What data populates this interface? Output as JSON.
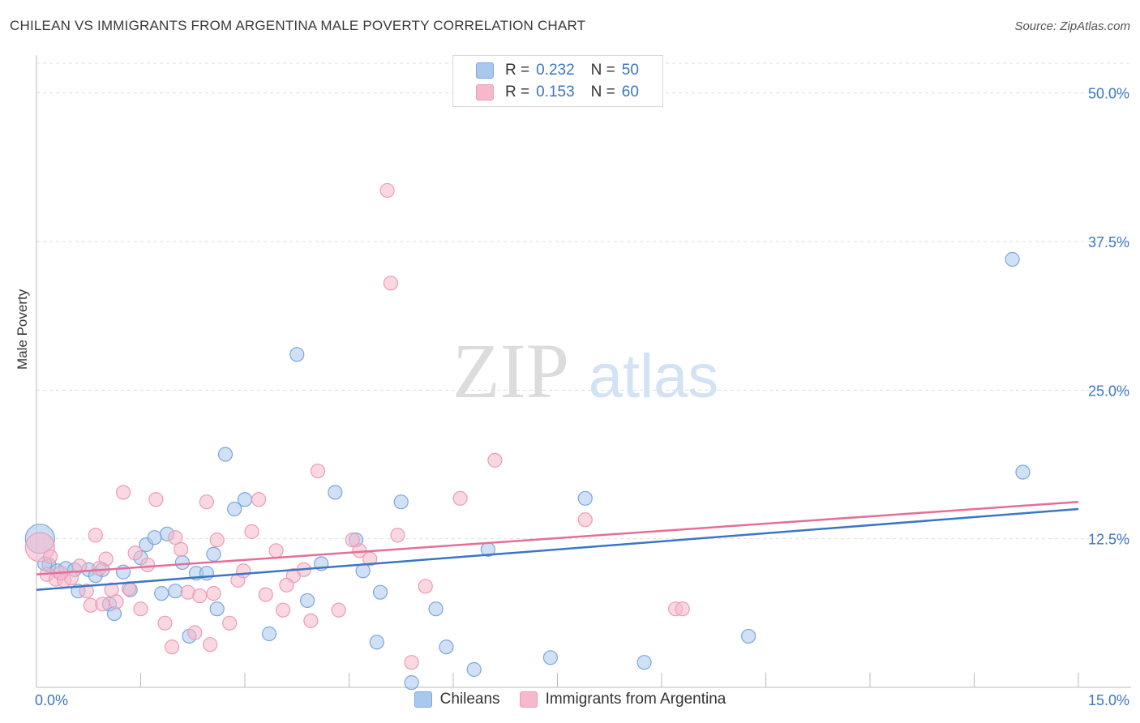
{
  "title": "CHILEAN VS IMMIGRANTS FROM ARGENTINA MALE POVERTY CORRELATION CHART",
  "source": "Source: ZipAtlas.com",
  "watermark": {
    "zip": "ZIP",
    "atlas": "atlas"
  },
  "legend": {
    "rows": [
      {
        "r_label": "R =",
        "r_value": "0.232",
        "n_label": "N =",
        "n_value": "50"
      },
      {
        "r_label": "R =",
        "r_value": "0.153",
        "n_label": "N =",
        "n_value": "60"
      }
    ]
  },
  "bottom_legend": {
    "chileans": "Chileans",
    "argentina": "Immigrants from Argentina"
  },
  "colors": {
    "blue_fill": "#aac8ef",
    "blue_stroke": "#7aa6dc",
    "blue_line": "#3b76c5",
    "pink_fill": "#f6b8cb",
    "pink_stroke": "#ec9bb5",
    "pink_line": "#e56e98",
    "axis_text": "#3b76c5"
  },
  "chart_data": {
    "type": "scatter",
    "title": "CHILEAN VS IMMIGRANTS FROM ARGENTINA MALE POVERTY CORRELATION CHART",
    "xlabel": "",
    "ylabel": "Male Poverty",
    "xlim": [
      0,
      15
    ],
    "ylim": [
      0,
      52.5
    ],
    "x_tick_labels": [
      "0.0%",
      "15.0%"
    ],
    "y_ticks": [
      12.5,
      25.0,
      37.5,
      50.0
    ],
    "y_tick_labels": [
      "12.5%",
      "25.0%",
      "37.5%",
      "50.0%"
    ],
    "series": [
      {
        "name": "Chileans",
        "R": 0.232,
        "N": 50,
        "trend": {
          "x": [
            0,
            15
          ],
          "y": [
            8.2,
            15.0
          ]
        },
        "points": [
          {
            "x": 0.05,
            "y": 12.5,
            "big": true
          },
          {
            "x": 0.18,
            "y": 10.3
          },
          {
            "x": 0.3,
            "y": 9.8
          },
          {
            "x": 0.42,
            "y": 10.0
          },
          {
            "x": 0.55,
            "y": 9.9
          },
          {
            "x": 0.6,
            "y": 8.1
          },
          {
            "x": 0.75,
            "y": 9.9
          },
          {
            "x": 0.85,
            "y": 9.4
          },
          {
            "x": 0.95,
            "y": 9.9
          },
          {
            "x": 1.05,
            "y": 7.0
          },
          {
            "x": 1.12,
            "y": 6.2
          },
          {
            "x": 1.25,
            "y": 9.7
          },
          {
            "x": 1.35,
            "y": 8.2
          },
          {
            "x": 1.5,
            "y": 10.9
          },
          {
            "x": 1.58,
            "y": 12.0
          },
          {
            "x": 1.7,
            "y": 12.6
          },
          {
            "x": 1.8,
            "y": 7.9
          },
          {
            "x": 1.88,
            "y": 12.9
          },
          {
            "x": 2.0,
            "y": 8.1
          },
          {
            "x": 2.1,
            "y": 10.5
          },
          {
            "x": 2.2,
            "y": 4.3
          },
          {
            "x": 2.3,
            "y": 9.6
          },
          {
            "x": 2.45,
            "y": 9.6
          },
          {
            "x": 2.55,
            "y": 11.2
          },
          {
            "x": 2.6,
            "y": 6.6
          },
          {
            "x": 2.72,
            "y": 19.6
          },
          {
            "x": 2.85,
            "y": 15.0
          },
          {
            "x": 3.0,
            "y": 15.8
          },
          {
            "x": 3.35,
            "y": 4.5
          },
          {
            "x": 3.75,
            "y": 28.0
          },
          {
            "x": 3.9,
            "y": 7.3
          },
          {
            "x": 4.1,
            "y": 10.4
          },
          {
            "x": 4.3,
            "y": 16.4
          },
          {
            "x": 4.6,
            "y": 12.4
          },
          {
            "x": 4.7,
            "y": 9.8
          },
          {
            "x": 4.9,
            "y": 3.8
          },
          {
            "x": 4.95,
            "y": 8.0
          },
          {
            "x": 5.25,
            "y": 15.6
          },
          {
            "x": 5.4,
            "y": 0.4
          },
          {
            "x": 5.75,
            "y": 6.6
          },
          {
            "x": 5.9,
            "y": 3.4
          },
          {
            "x": 6.3,
            "y": 1.5
          },
          {
            "x": 6.5,
            "y": 11.6
          },
          {
            "x": 7.4,
            "y": 2.5
          },
          {
            "x": 7.9,
            "y": 15.9
          },
          {
            "x": 8.75,
            "y": 2.1
          },
          {
            "x": 10.25,
            "y": 4.3
          },
          {
            "x": 14.05,
            "y": 36.0
          },
          {
            "x": 14.2,
            "y": 18.1
          },
          {
            "x": 0.12,
            "y": 10.4
          }
        ]
      },
      {
        "name": "Immigrants from Argentina",
        "R": 0.153,
        "N": 60,
        "trend": {
          "x": [
            0,
            15
          ],
          "y": [
            9.5,
            15.6
          ]
        },
        "points": [
          {
            "x": 0.05,
            "y": 11.8,
            "big": true
          },
          {
            "x": 0.15,
            "y": 9.5
          },
          {
            "x": 0.28,
            "y": 9.1
          },
          {
            "x": 0.4,
            "y": 9.0
          },
          {
            "x": 0.5,
            "y": 9.2
          },
          {
            "x": 0.62,
            "y": 10.2
          },
          {
            "x": 0.72,
            "y": 8.1
          },
          {
            "x": 0.78,
            "y": 6.9
          },
          {
            "x": 0.95,
            "y": 7.0
          },
          {
            "x": 1.0,
            "y": 10.8
          },
          {
            "x": 1.08,
            "y": 8.2
          },
          {
            "x": 1.15,
            "y": 7.2
          },
          {
            "x": 1.25,
            "y": 16.4
          },
          {
            "x": 1.33,
            "y": 8.3
          },
          {
            "x": 1.42,
            "y": 11.3
          },
          {
            "x": 1.5,
            "y": 6.6
          },
          {
            "x": 1.6,
            "y": 10.3
          },
          {
            "x": 1.72,
            "y": 15.8
          },
          {
            "x": 1.85,
            "y": 5.4
          },
          {
            "x": 2.0,
            "y": 12.6
          },
          {
            "x": 2.08,
            "y": 11.6
          },
          {
            "x": 2.18,
            "y": 8.0
          },
          {
            "x": 2.28,
            "y": 4.6
          },
          {
            "x": 2.35,
            "y": 7.7
          },
          {
            "x": 2.45,
            "y": 15.6
          },
          {
            "x": 2.55,
            "y": 7.9
          },
          {
            "x": 2.6,
            "y": 12.4
          },
          {
            "x": 2.78,
            "y": 5.4
          },
          {
            "x": 2.9,
            "y": 9.0
          },
          {
            "x": 2.98,
            "y": 9.8
          },
          {
            "x": 3.1,
            "y": 13.1
          },
          {
            "x": 3.2,
            "y": 15.8
          },
          {
            "x": 3.3,
            "y": 7.8
          },
          {
            "x": 3.45,
            "y": 11.5
          },
          {
            "x": 3.55,
            "y": 6.5
          },
          {
            "x": 3.7,
            "y": 9.4
          },
          {
            "x": 3.85,
            "y": 9.9
          },
          {
            "x": 3.95,
            "y": 5.6
          },
          {
            "x": 4.05,
            "y": 18.2
          },
          {
            "x": 4.35,
            "y": 6.5
          },
          {
            "x": 4.55,
            "y": 12.4
          },
          {
            "x": 4.65,
            "y": 11.5
          },
          {
            "x": 4.8,
            "y": 10.8
          },
          {
            "x": 5.05,
            "y": 41.8
          },
          {
            "x": 5.1,
            "y": 34.0
          },
          {
            "x": 5.2,
            "y": 12.8
          },
          {
            "x": 5.4,
            "y": 2.1
          },
          {
            "x": 5.6,
            "y": 8.5
          },
          {
            "x": 6.1,
            "y": 15.9
          },
          {
            "x": 6.6,
            "y": 19.1
          },
          {
            "x": 7.9,
            "y": 14.1
          },
          {
            "x": 9.2,
            "y": 6.6
          },
          {
            "x": 9.3,
            "y": 6.6
          },
          {
            "x": 0.2,
            "y": 11.0
          },
          {
            "x": 0.85,
            "y": 12.8
          },
          {
            "x": 1.95,
            "y": 3.4
          },
          {
            "x": 2.5,
            "y": 3.6
          },
          {
            "x": 0.35,
            "y": 9.6
          },
          {
            "x": 0.9,
            "y": 10.0
          },
          {
            "x": 3.6,
            "y": 8.6
          }
        ]
      }
    ]
  }
}
